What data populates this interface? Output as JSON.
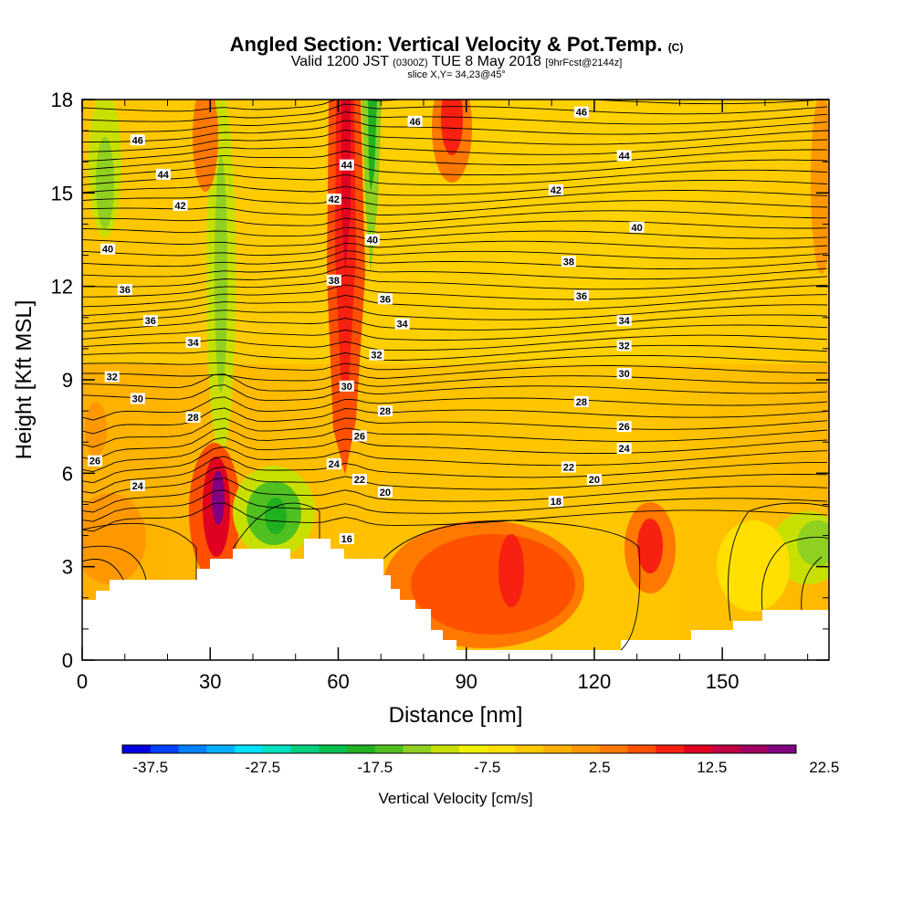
{
  "chart_data": {
    "type": "heatmap",
    "title": "Angled Section: Vertical Velocity & Pot.Temp.",
    "title_mark": "(C)",
    "subtitle_main": "Valid 1200 JST",
    "subtitle_zulu": "(0300Z)",
    "subtitle_date": "TUE 8 May 2018",
    "subtitle_fcst": "[9hrFcst@2144z]",
    "slice_label": "slice X,Y= 34,23@45°",
    "xlabel": "Distance [nm]",
    "ylabel": "Height [Kft MSL]",
    "xlim": [
      0,
      175
    ],
    "ylim": [
      0,
      18
    ],
    "x_ticks": [
      "0",
      "30",
      "60",
      "90",
      "120",
      "150"
    ],
    "y_ticks": [
      "0",
      "3",
      "6",
      "9",
      "12",
      "15",
      "18"
    ],
    "colorbar": {
      "label": "Vertical Velocity [cm/s]",
      "tick_labels": [
        "-37.5",
        "-27.5",
        "-17.5",
        "-7.5",
        "2.5",
        "12.5",
        "22.5"
      ],
      "colors": [
        "#0000e0",
        "#0040ff",
        "#0080ff",
        "#00b0ff",
        "#00e0ff",
        "#00e0c0",
        "#00d080",
        "#00c050",
        "#20b020",
        "#50c020",
        "#90d020",
        "#c8e000",
        "#f0f000",
        "#ffe000",
        "#ffc800",
        "#ffb000",
        "#ff9800",
        "#ff7800",
        "#ff5000",
        "#f82010",
        "#e00020",
        "#c00040",
        "#a00060",
        "#800080"
      ]
    },
    "pot_temp_labels": [
      {
        "text": "46",
        "x": 13,
        "y": 16.7
      },
      {
        "text": "46",
        "x": 78,
        "y": 17.3
      },
      {
        "text": "46",
        "x": 117,
        "y": 17.6
      },
      {
        "text": "44",
        "x": 19,
        "y": 15.6
      },
      {
        "text": "44",
        "x": 62,
        "y": 15.9
      },
      {
        "text": "44",
        "x": 127,
        "y": 16.2
      },
      {
        "text": "42",
        "x": 23,
        "y": 14.6
      },
      {
        "text": "42",
        "x": 59,
        "y": 14.8
      },
      {
        "text": "42",
        "x": 111,
        "y": 15.1
      },
      {
        "text": "40",
        "x": 6,
        "y": 13.2
      },
      {
        "text": "40",
        "x": 68,
        "y": 13.5
      },
      {
        "text": "40",
        "x": 130,
        "y": 13.9
      },
      {
        "text": "38",
        "x": 59,
        "y": 12.2
      },
      {
        "text": "38",
        "x": 114,
        "y": 12.8
      },
      {
        "text": "36",
        "x": 10,
        "y": 11.9
      },
      {
        "text": "36",
        "x": 16,
        "y": 10.9
      },
      {
        "text": "36",
        "x": 71,
        "y": 11.6
      },
      {
        "text": "36",
        "x": 117,
        "y": 11.7
      },
      {
        "text": "34",
        "x": 26,
        "y": 10.2
      },
      {
        "text": "34",
        "x": 75,
        "y": 10.8
      },
      {
        "text": "34",
        "x": 127,
        "y": 10.9
      },
      {
        "text": "32",
        "x": 7,
        "y": 9.1
      },
      {
        "text": "32",
        "x": 69,
        "y": 9.8
      },
      {
        "text": "32",
        "x": 127,
        "y": 10.1
      },
      {
        "text": "30",
        "x": 13,
        "y": 8.4
      },
      {
        "text": "30",
        "x": 62,
        "y": 8.8
      },
      {
        "text": "30",
        "x": 127,
        "y": 9.2
      },
      {
        "text": "28",
        "x": 26,
        "y": 7.8
      },
      {
        "text": "28",
        "x": 71,
        "y": 8.0
      },
      {
        "text": "28",
        "x": 117,
        "y": 8.3
      },
      {
        "text": "26",
        "x": 3,
        "y": 6.4
      },
      {
        "text": "26",
        "x": 65,
        "y": 7.2
      },
      {
        "text": "26",
        "x": 127,
        "y": 7.5
      },
      {
        "text": "24",
        "x": 13,
        "y": 5.6
      },
      {
        "text": "24",
        "x": 59,
        "y": 6.3
      },
      {
        "text": "24",
        "x": 127,
        "y": 6.8
      },
      {
        "text": "22",
        "x": 65,
        "y": 5.8
      },
      {
        "text": "22",
        "x": 114,
        "y": 6.2
      },
      {
        "text": "20",
        "x": 71,
        "y": 5.4
      },
      {
        "text": "20",
        "x": 120,
        "y": 5.8
      },
      {
        "text": "18",
        "x": 111,
        "y": 5.1
      },
      {
        "text": "16",
        "x": 62,
        "y": 3.9
      }
    ]
  }
}
